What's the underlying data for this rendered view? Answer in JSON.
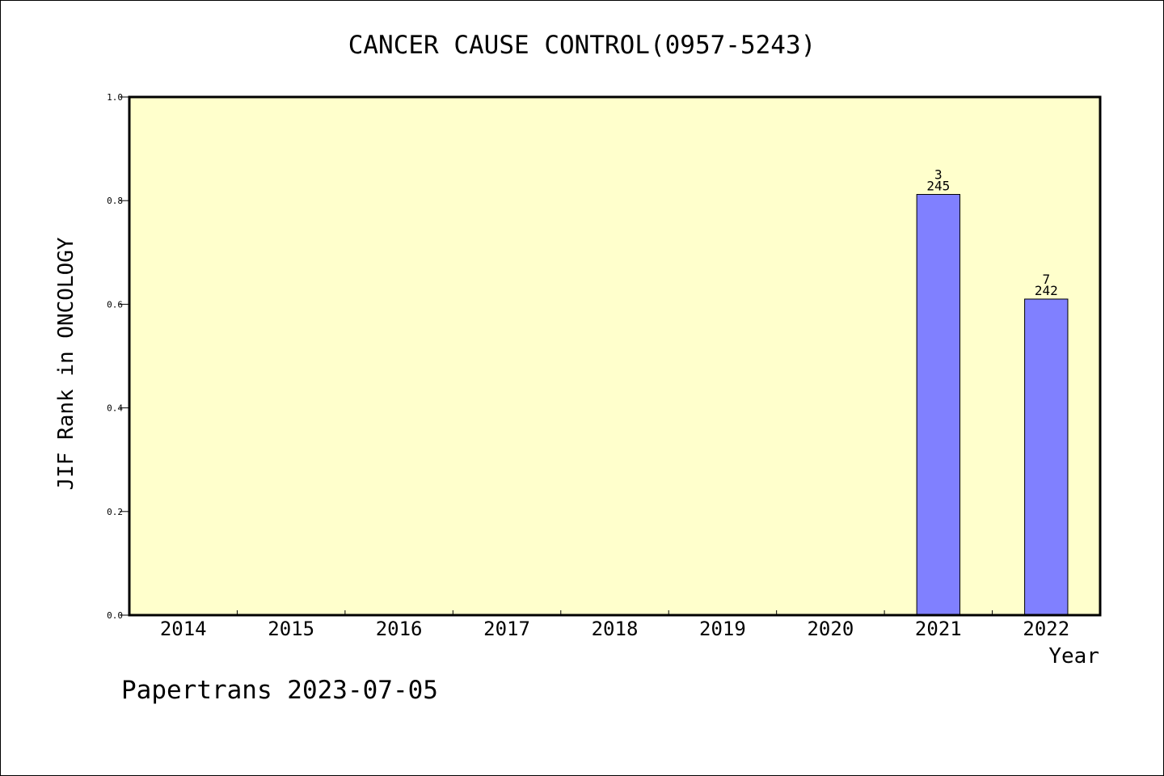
{
  "chart_data": {
    "type": "bar",
    "title": "CANCER CAUSE CONTROL(0957-5243)",
    "xlabel": "Year",
    "ylabel": "JIF Rank in ONCOLOGY",
    "categories": [
      "2014",
      "2015",
      "2016",
      "2017",
      "2018",
      "2019",
      "2020",
      "2021",
      "2022"
    ],
    "values": [
      null,
      null,
      null,
      null,
      null,
      null,
      null,
      0.812,
      0.61
    ],
    "bar_labels": [
      null,
      null,
      null,
      null,
      null,
      null,
      null,
      {
        "rank": "3",
        "total": "245"
      },
      {
        "rank": "7",
        "total": "242"
      }
    ],
    "yticks": [
      "0.0",
      "0.2",
      "0.4",
      "0.6",
      "0.8",
      "1.0"
    ],
    "ylim": [
      0,
      1
    ],
    "grid": false,
    "colors": {
      "plot_background": "#ffffcc",
      "bar_fill": "#8080ff",
      "axis": "#000000"
    }
  },
  "footer": {
    "text": "Papertrans 2023-07-05"
  }
}
